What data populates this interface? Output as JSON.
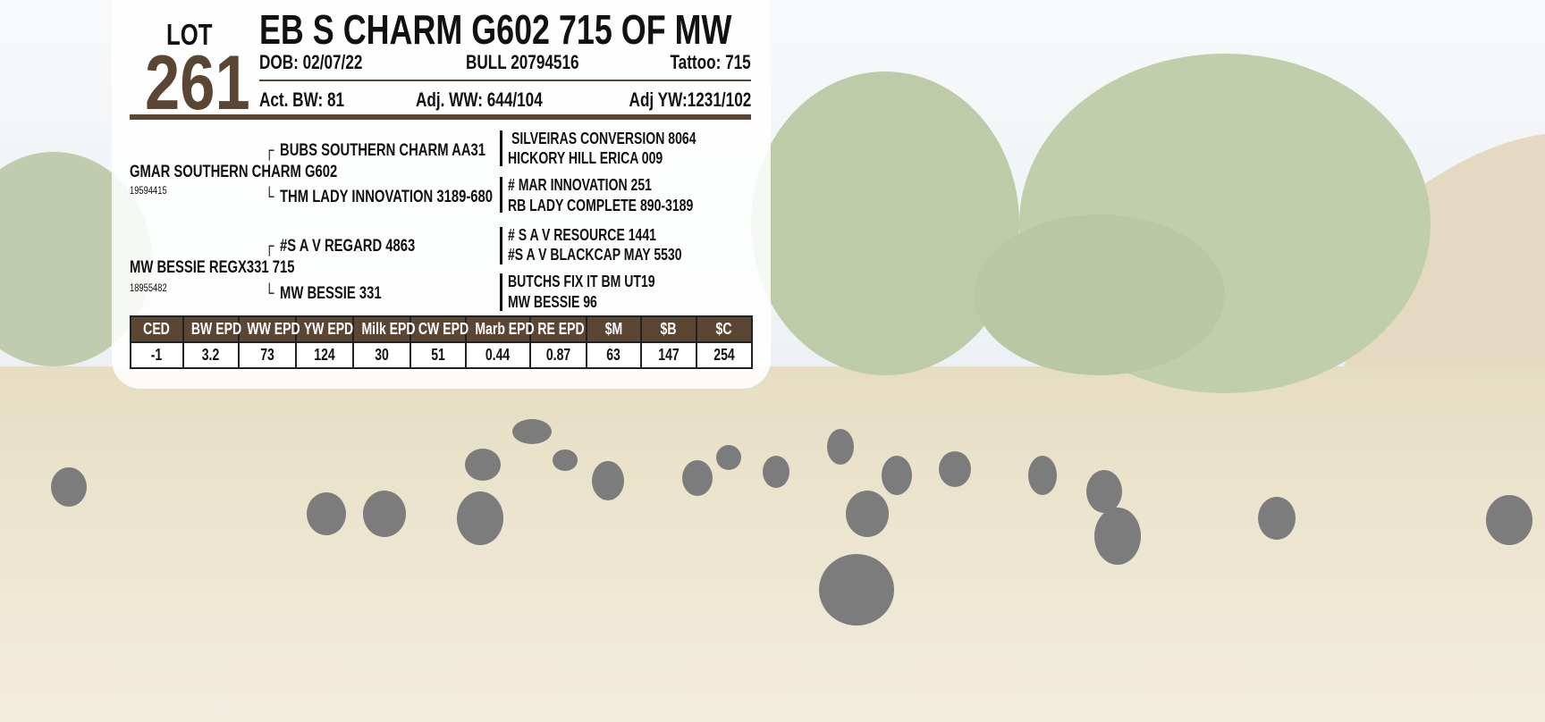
{
  "lot": {
    "label": "LOT",
    "number": "261"
  },
  "title": "EB S CHARM G602 715 OF MW",
  "info": {
    "dob": "DOB: 02/07/22",
    "registration": "BULL 20794516",
    "tattoo": "Tattoo: 715",
    "birth_weight": "Act. BW: 81",
    "weaning_weight": "Adj. WW: 644/104",
    "yearling_weight": "Adj YW:1231/102"
  },
  "pedigree": {
    "sire": {
      "name": "GMAR SOUTHERN CHARM G602",
      "registration": "19594415",
      "sire": {
        "name": "BUBS SOUTHERN CHARM AA31",
        "sire": "SILVEIRAS CONVERSION 8064",
        "dam": "HICKORY HILL ERICA 009"
      },
      "dam": {
        "name": "THM LADY INNOVATION 3189-680",
        "sire": "# MAR INNOVATION 251",
        "dam": "RB LADY COMPLETE 890-3189"
      }
    },
    "dam": {
      "name": "MW BESSIE REGX331 715",
      "registration": "18955482",
      "sire": {
        "name": "#S A V REGARD 4863",
        "sire": "# S A V RESOURCE 1441",
        "dam": "#S A V BLACKCAP MAY 5530"
      },
      "dam": {
        "name": "MW BESSIE 331",
        "sire": "BUTCHS FIX IT BM UT19",
        "dam": "MW BESSIE 96"
      }
    }
  },
  "epd": {
    "headers": [
      "CED",
      "BW EPD",
      "WW EPD",
      "YW EPD",
      "Milk EPD",
      "CW EPD",
      "Marb EPD",
      "RE EPD",
      "$M",
      "$B",
      "$C"
    ],
    "values": [
      -1,
      3.2,
      73,
      124,
      30,
      51,
      0.44,
      0.87,
      63,
      147,
      254
    ]
  }
}
